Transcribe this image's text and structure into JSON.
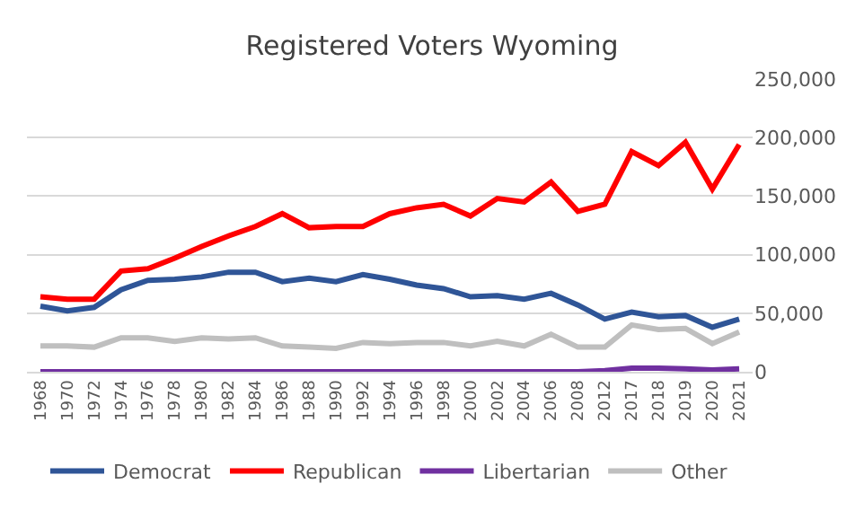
{
  "chart_data": {
    "type": "line",
    "title": "Registered Voters Wyoming",
    "categories": [
      "1968",
      "1970",
      "1972",
      "1974",
      "1976",
      "1978",
      "1980",
      "1982",
      "1984",
      "1986",
      "1988",
      "1990",
      "1992",
      "1994",
      "1996",
      "1998",
      "2000",
      "2002",
      "2004",
      "2006",
      "2008",
      "2012",
      "2017",
      "2018",
      "2019",
      "2020",
      "2021"
    ],
    "series": [
      {
        "name": "Democrat",
        "color": "#2f5597",
        "values": [
          56000,
          52000,
          55000,
          70000,
          78000,
          79000,
          81000,
          85000,
          85000,
          77000,
          80000,
          77000,
          83000,
          79000,
          74000,
          71000,
          64000,
          65000,
          62000,
          67000,
          57000,
          45000,
          51000,
          47000,
          48000,
          38000,
          45000
        ]
      },
      {
        "name": "Republican",
        "color": "#ff0000",
        "values": [
          64000,
          62000,
          62000,
          86000,
          88000,
          97000,
          107000,
          116000,
          124000,
          135000,
          123000,
          124000,
          124000,
          135000,
          140000,
          143000,
          133000,
          148000,
          145000,
          162000,
          137000,
          143000,
          188000,
          176000,
          196000,
          156000,
          194000
        ]
      },
      {
        "name": "Libertarian",
        "color": "#7030a0",
        "values": [
          0,
          0,
          0,
          0,
          0,
          0,
          0,
          0,
          0,
          0,
          0,
          0,
          0,
          0,
          0,
          0,
          0,
          0,
          0,
          0,
          0,
          1000,
          3000,
          3000,
          2500,
          1500,
          2500
        ]
      },
      {
        "name": "Other",
        "color": "#bfbfbf",
        "values": [
          22000,
          22000,
          21000,
          29000,
          29000,
          26000,
          29000,
          28000,
          29000,
          22000,
          21000,
          20000,
          25000,
          24000,
          25000,
          25000,
          22000,
          26000,
          22000,
          32000,
          21000,
          21000,
          40000,
          36000,
          37000,
          24000,
          34000
        ]
      }
    ],
    "ylim": [
      0,
      250000
    ],
    "yticks": [
      {
        "value": 0,
        "label": "0"
      },
      {
        "value": 50000,
        "label": "50,000"
      },
      {
        "value": 100000,
        "label": "100,000"
      },
      {
        "value": 150000,
        "label": "150,000"
      },
      {
        "value": 200000,
        "label": "200,000"
      },
      {
        "value": 250000,
        "label": "250,000"
      }
    ],
    "grid": "y",
    "legend": "bottom",
    "marker": "none",
    "line_style": "solid"
  }
}
